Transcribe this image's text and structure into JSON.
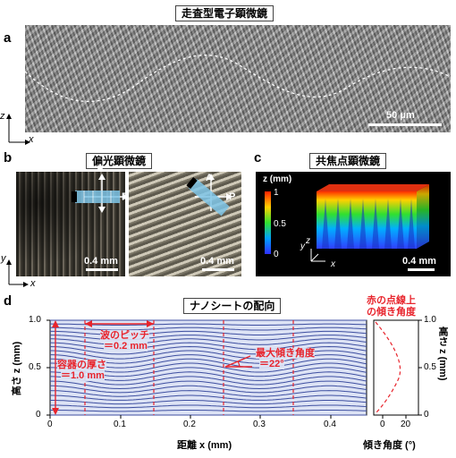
{
  "panel_a": {
    "letter": "a",
    "title": "走査型電子顕微鏡",
    "scale": "50 μm",
    "axis_z": "z",
    "axis_x": "x"
  },
  "panel_b": {
    "letter": "b",
    "title": "偏光顕微鏡",
    "polarizer_a": "A",
    "polarizer_p": "P",
    "scale_left": "0.4 mm",
    "scale_right": "0.4 mm",
    "axis_y": "y",
    "axis_x": "x"
  },
  "panel_c": {
    "letter": "c",
    "title": "共焦点顕微鏡",
    "colorbar_title": "z (mm)",
    "colorbar_ticks": [
      "1",
      "0.5",
      "0"
    ],
    "scale": "0.4 mm",
    "axis_y": "y",
    "axis_z": "z",
    "axis_x": "x"
  },
  "panel_d": {
    "letter": "d",
    "title": "ナノシートの配向",
    "red_dotted_label_line1": "赤の点線上",
    "red_dotted_label_line2": "の傾き角度",
    "annotation_pitch_1": "波のピッチ",
    "annotation_pitch_2": "＝0.2 mm",
    "annotation_thickness_1": "容器の厚さ",
    "annotation_thickness_2": "＝1.0 mm",
    "annotation_angle_1": "最大傾き角度",
    "annotation_angle_2": "＝22°",
    "x_ticks": [
      "0",
      "0.1",
      "0.2",
      "0.3",
      "0.4"
    ],
    "y_ticks": [
      "1.0",
      "0.5",
      "0"
    ],
    "xlabel": "距離 x (mm)",
    "ylabel": "高さ z (mm)",
    "side_xlabel": "傾き角度 (°)",
    "side_x_ticks": [
      "0",
      "20"
    ],
    "side_y_ticks": [
      "1.0",
      "0.5",
      "0"
    ],
    "side_ylabel": "高さ z (mm)"
  },
  "colors": {
    "wave_lines": "#3d4ea0",
    "wave_bg": "#dde3f5",
    "red": "#e8242c"
  }
}
